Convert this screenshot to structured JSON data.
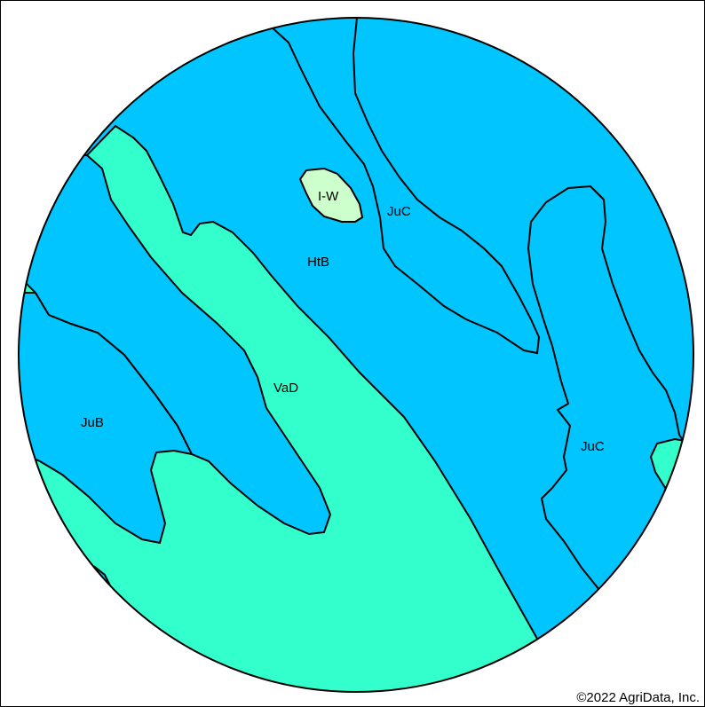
{
  "map": {
    "colors": {
      "water_blue": "#00c5ff",
      "teal": "#33ffcc",
      "light_green": "#ccffcc",
      "outline": "#000000",
      "background": "#ffffff"
    },
    "labels": {
      "iw": "I-W",
      "juc_north": "JuC",
      "htb": "HtB",
      "vad": "VaD",
      "jub": "JuB",
      "juc_east": "JuC"
    }
  },
  "footer": {
    "copyright": "©2022 AgriData, Inc."
  }
}
